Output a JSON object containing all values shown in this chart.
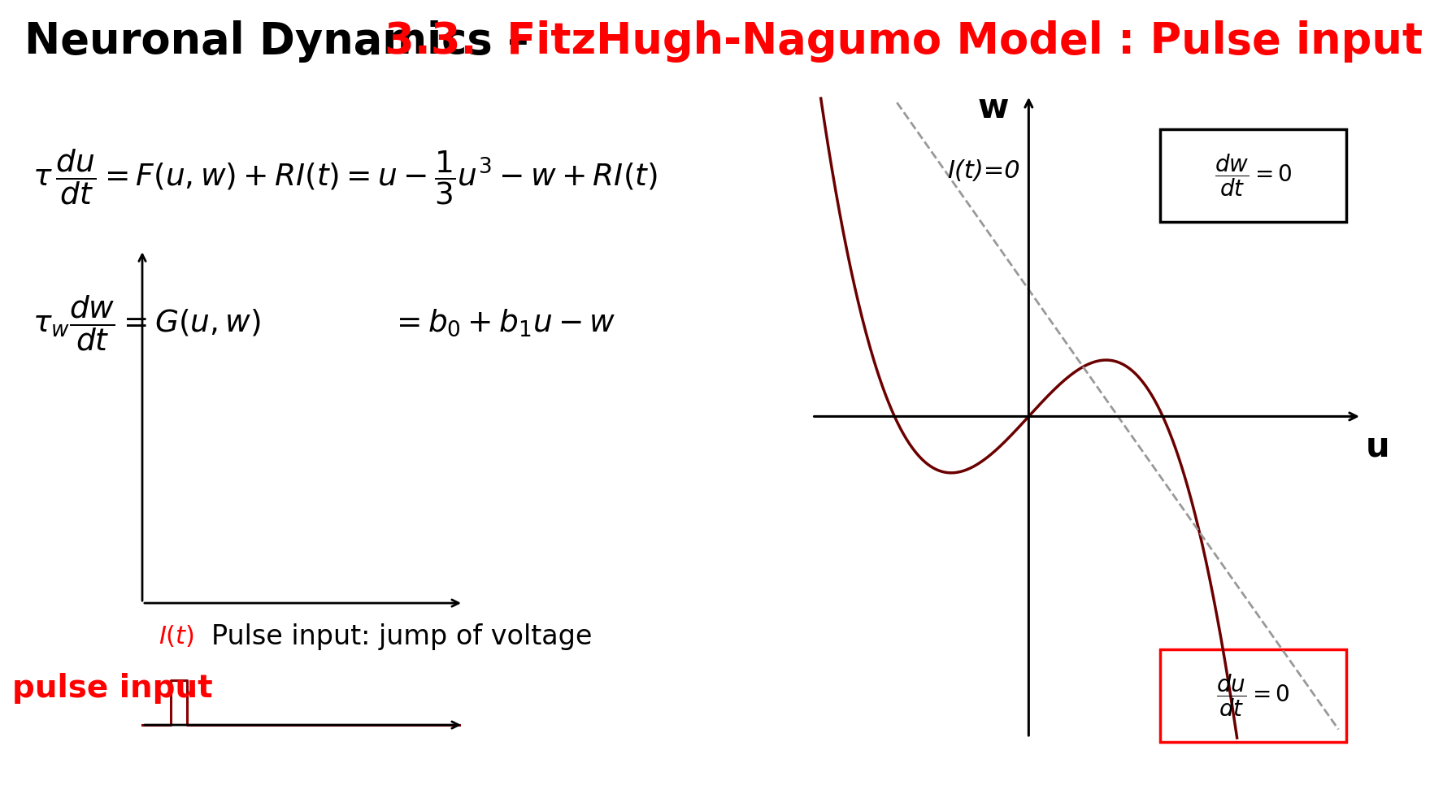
{
  "title_black": "Neuronal Dynamics – ",
  "title_red": "3.3.  FitzHugh-Nagumo Model : Pulse input",
  "title_fontsize": 38,
  "bg_color": "#ffffff",
  "header_bg": "#cccccc",
  "pulse_text": "Pulse input: jump of voltage",
  "pulse_input_label": "pulse input",
  "It0_label": "I(t)=0",
  "w_label": "w",
  "u_label": "u",
  "curve_color": "#6B0000",
  "dashed_line_color": "#999999",
  "box_border_black": "#000000",
  "box_border_red": "#cc0000"
}
